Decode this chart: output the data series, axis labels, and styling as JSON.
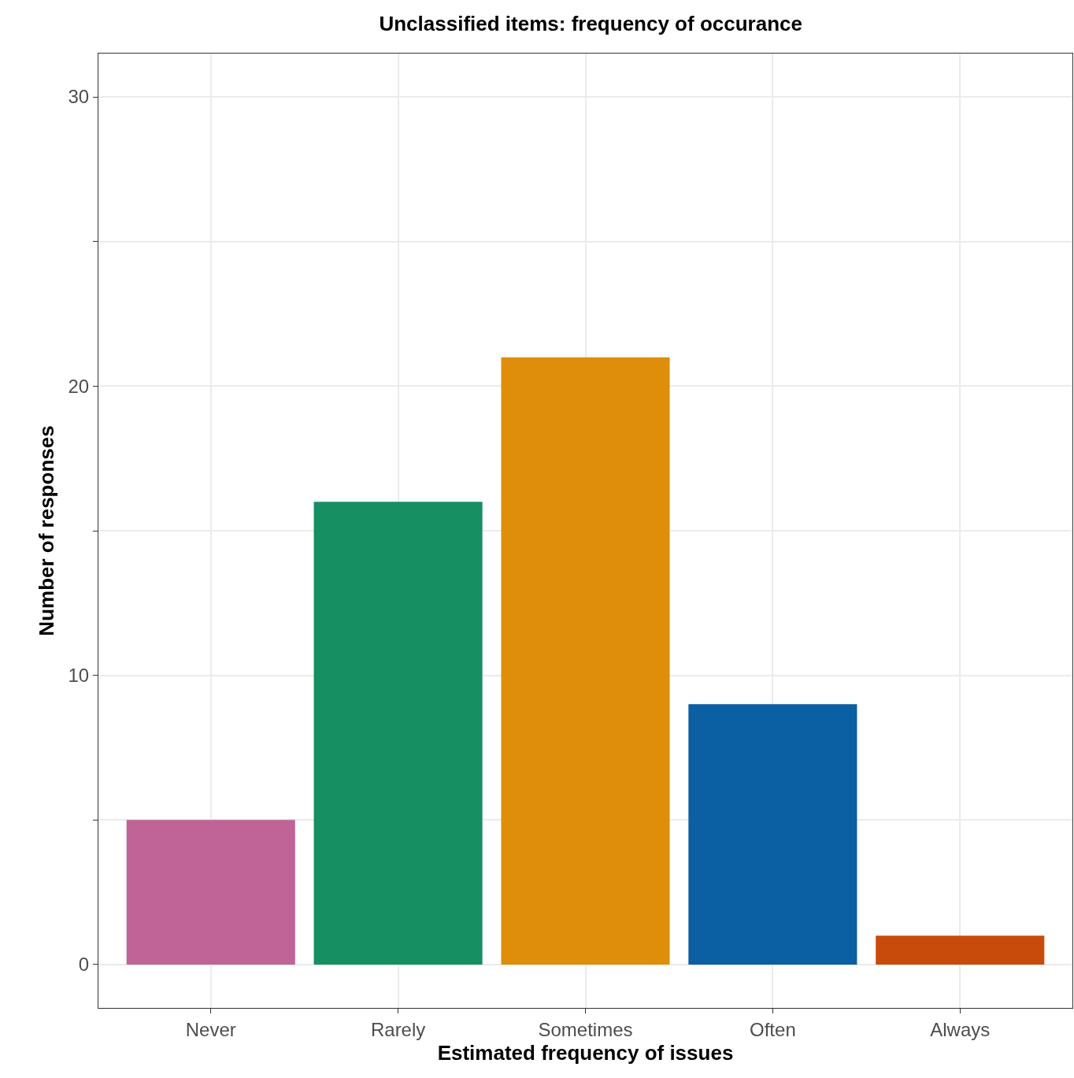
{
  "chart_data": {
    "type": "bar",
    "title": "Unclassified items: frequency of occurance",
    "xlabel": "Estimated frequency of issues",
    "ylabel": "Number of responses",
    "categories": [
      "Never",
      "Rarely",
      "Sometimes",
      "Often",
      "Always"
    ],
    "values": [
      5,
      16,
      21,
      9,
      1
    ],
    "colors": [
      "#c06396",
      "#168f62",
      "#df8e0b",
      "#0b5fa3",
      "#c84b0b"
    ],
    "ylim": [
      -1.5,
      31.5
    ],
    "yticks": [
      0,
      {
        "value": 5,
        "label": null
      },
      10,
      {
        "value": 15,
        "label": null
      },
      20,
      {
        "value": 25,
        "label": null
      },
      30
    ],
    "grid": true,
    "legend": false
  }
}
